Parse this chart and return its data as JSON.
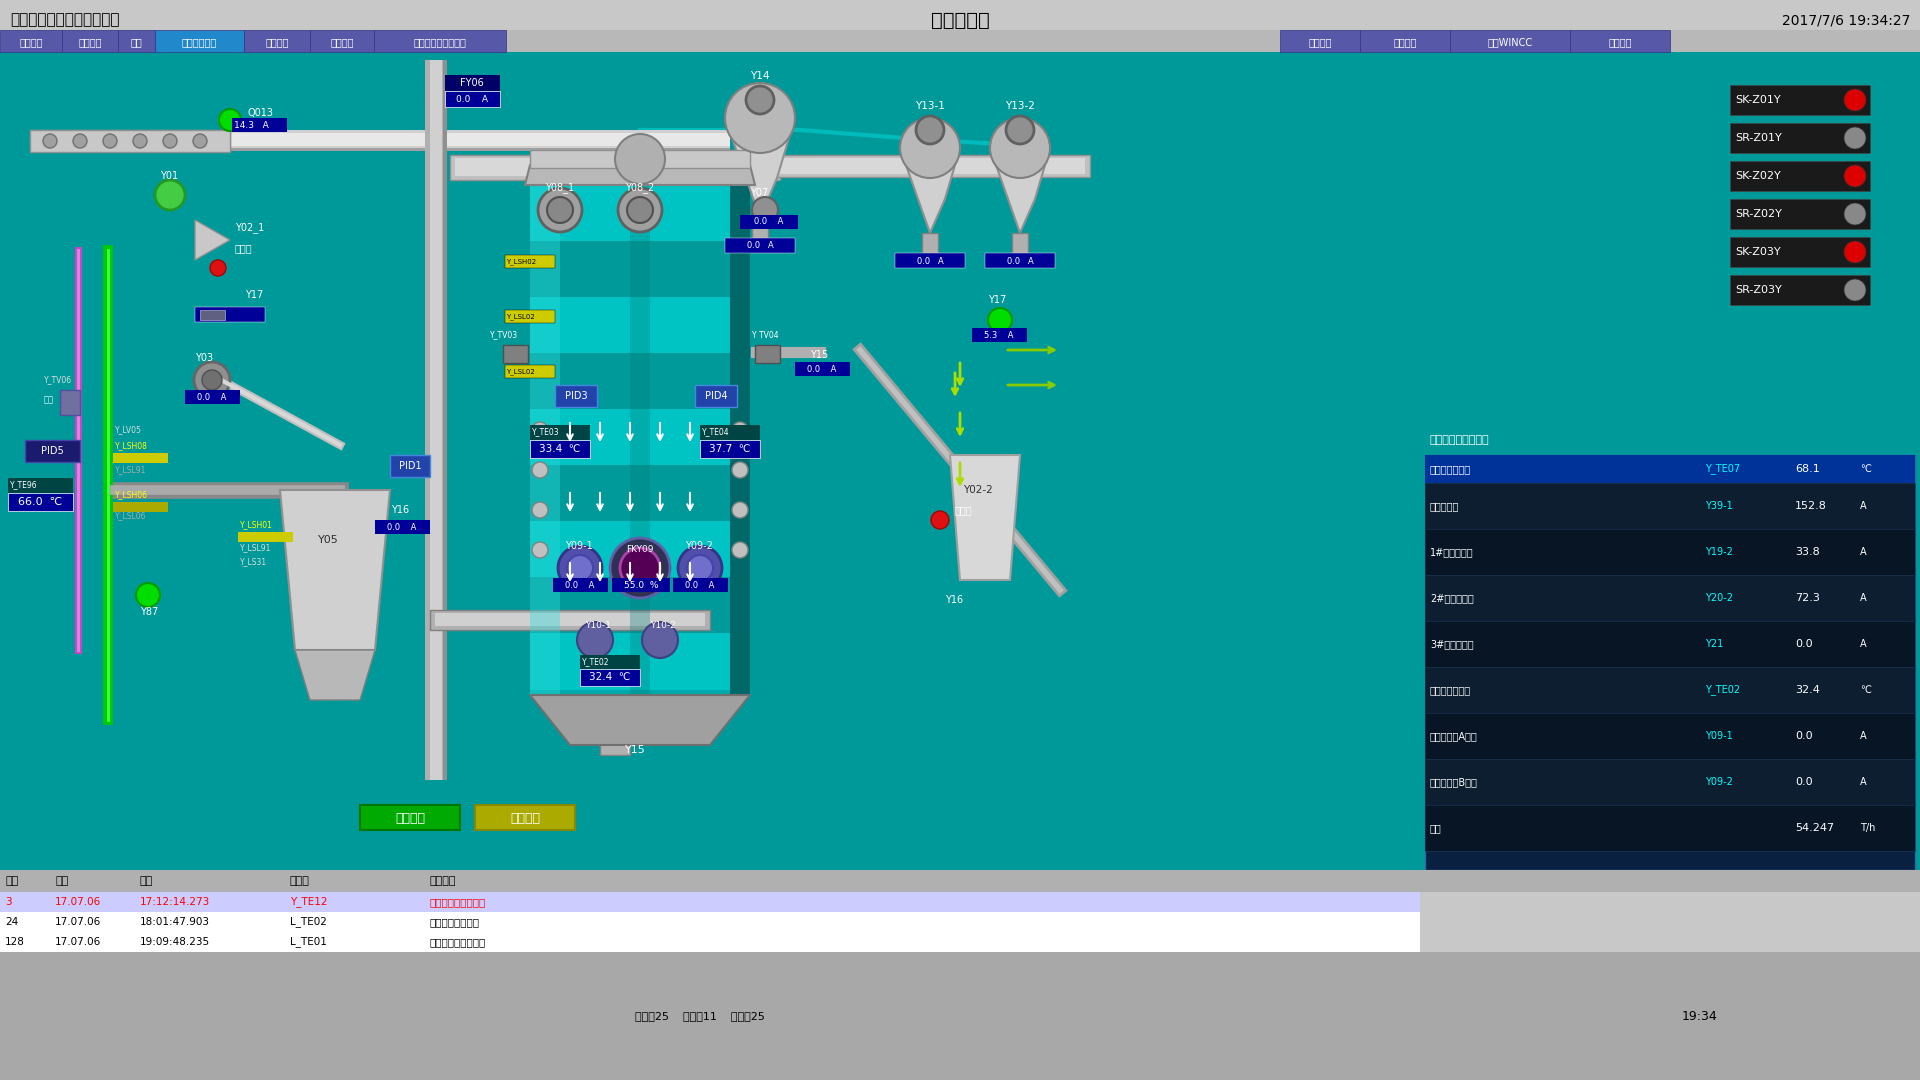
{
  "title": "预处理车间",
  "company": "福建长德蛋白科技有限公司",
  "datetime": "2017/7/6 19:34:27",
  "bg_color": "#008B8B",
  "header_bg": "#C8C8C8",
  "tab_row_bg": "#B8B8B8",
  "nav_tabs": [
    "浸出车间",
    "蒸汽系统",
    "清理",
    "润皮调质烘干",
    "脱皮软化",
    "压胚膨化",
    "豆皮筛分析碎及拍碎"
  ],
  "nav_tab_colors": [
    "#5858A8",
    "#5858A8",
    "#5858A8",
    "#2288CC",
    "#5858A8",
    "#5858A8",
    "#5858A8"
  ],
  "right_tabs": [
    "报警查询",
    "用户登录",
    "退出WINCC",
    "浸出班长"
  ],
  "right_tab_colors": [
    "#5858A8",
    "#5858A8",
    "#5858A8",
    "#5858A8"
  ],
  "status_items": [
    {
      "text": "SK-Z01Y",
      "led": "red"
    },
    {
      "text": "SR-Z01Y",
      "led": "gray"
    },
    {
      "text": "SK-Z02Y",
      "led": "red"
    },
    {
      "text": "SR-Z02Y",
      "led": "gray"
    },
    {
      "text": "SK-Z03Y",
      "led": "red"
    },
    {
      "text": "SR-Z03Y",
      "led": "gray"
    }
  ],
  "table_header": [
    "软化锅出料温度",
    "Y_TE07",
    "68.1",
    "℃"
  ],
  "table_rows": [
    [
      "软化锅电流",
      "Y39-1",
      "152.8",
      "A"
    ],
    [
      "1#脱皮机电流",
      "Y19-2",
      "33.8",
      "A"
    ],
    [
      "2#脱皮机电流",
      "Y20-2",
      "72.3",
      "A"
    ],
    [
      "3#脱皮机电流",
      "Y21",
      "0.0",
      "A"
    ],
    [
      "烘干塔出料温度",
      "Y_TE02",
      "32.4",
      "℃"
    ],
    [
      "烘干调制塔A电流",
      "Y09-1",
      "0.0",
      "A"
    ],
    [
      "烘干调制塔B电流",
      "Y09-2",
      "0.0",
      "A"
    ],
    [
      "流量",
      "",
      "54.247",
      "T/h"
    ]
  ],
  "log_rows": [
    [
      "3",
      "17.07.06",
      "17:12:14.273",
      "Y_TE12",
      "软化锅出料温度高报"
    ],
    [
      "24",
      "17.07.06",
      "18:01:47.903",
      "L_TE02",
      "热风温度高报故障"
    ],
    [
      "128",
      "17.07.06",
      "19:09:48.235",
      "L_TE01",
      "毛坯加热器温度高报"
    ]
  ],
  "teal": "#009999",
  "teal_light": "#00BBBB",
  "teal_dark": "#007777",
  "gray_pipe": "#B8B8B8",
  "dark_pipe": "#888888",
  "blue_display": "#000099",
  "dark_panel": "#001133"
}
